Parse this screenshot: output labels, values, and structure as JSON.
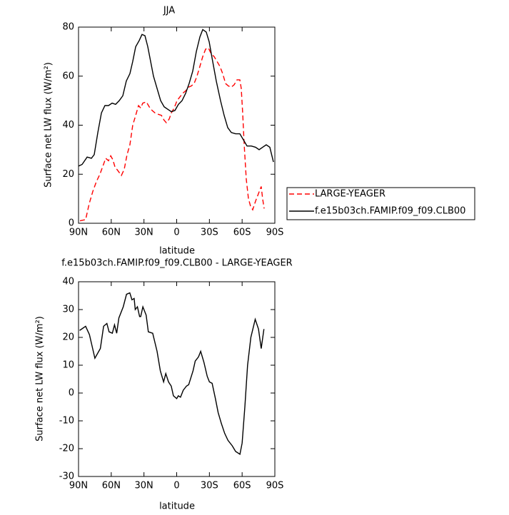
{
  "chart_data": [
    {
      "type": "line",
      "title": "JJA",
      "x_label": "latitude",
      "y_label": "Surface net LW flux (W/m²)",
      "xlim": [
        90,
        -90
      ],
      "xticks": [
        {
          "value": 90,
          "label": "90N"
        },
        {
          "value": 60,
          "label": "60N"
        },
        {
          "value": 30,
          "label": "30N"
        },
        0,
        {
          "value": -30,
          "label": "30S"
        },
        {
          "value": -60,
          "label": "60S"
        },
        {
          "value": -90,
          "label": "90S"
        }
      ],
      "ylim": [
        0,
        80
      ],
      "yticks": [
        0,
        20,
        40,
        60,
        80
      ],
      "legend": "right",
      "series": [
        {
          "name": "LARGE-YEAGER",
          "color": "#ff0000",
          "line_style": "dashed",
          "x": [
            88.7,
            83.5,
            80.2,
            76.9,
            73.6,
            70.4,
            67.1,
            65.1,
            62.5,
            60.5,
            58.6,
            56.6,
            54,
            50.7,
            48.1,
            45.5,
            42.9,
            40.3,
            37.6,
            35,
            33,
            31.1,
            27.8,
            25.2,
            22.5,
            19.9,
            17.3,
            14,
            11.5,
            9.5,
            6.9,
            4.9,
            2.3,
            -0.3,
            -2.9,
            -5.5,
            -8.2,
            -10.8,
            -13.4,
            -16,
            -18.6,
            -21.3,
            -23.9,
            -26.5,
            -29.1,
            -31.7,
            -34.3,
            -37,
            -39.6,
            -42.2,
            -44.8,
            -47.4,
            -50.1,
            -52.7,
            -55.3,
            -57.9,
            -59.2,
            -60.5,
            -61.9,
            -63.8,
            -65.8,
            -67.7,
            -69.7,
            -72.3,
            -74.9,
            -77.5,
            -78.8,
            -80.2
          ],
          "values": [
            1,
            1.5,
            8,
            13,
            17,
            20,
            24,
            26.5,
            25.5,
            27.5,
            26,
            23,
            21.5,
            19.5,
            22,
            28,
            32,
            40,
            44,
            48,
            47,
            49,
            49.5,
            47.5,
            46,
            45,
            44.5,
            44,
            42,
            41,
            42.5,
            45,
            47,
            50,
            51.5,
            53,
            54,
            55.5,
            56,
            57,
            60,
            64,
            68,
            71,
            71.5,
            69,
            68,
            66,
            64,
            61,
            57,
            56,
            55.5,
            56.5,
            58.5,
            58.5,
            55,
            45,
            32,
            18,
            10,
            7,
            5.5,
            9,
            12,
            15,
            10,
            6
          ]
        },
        {
          "name": "f.e15b03ch.FAMIP.f09_f09.CLB00",
          "color": "#000000",
          "line_style": "solid",
          "x": [
            90,
            86.7,
            82.1,
            78.2,
            75.6,
            72.3,
            69,
            65.8,
            62.5,
            59.2,
            56,
            52.7,
            49.4,
            46.2,
            42.9,
            40.3,
            37.6,
            34.4,
            31.8,
            29.1,
            26.5,
            23.9,
            21.3,
            18,
            14.7,
            11.5,
            8.2,
            4.9,
            1.6,
            -1.6,
            -4.9,
            -8.2,
            -11.4,
            -14.7,
            -18,
            -21.3,
            -23.9,
            -27.1,
            -29.8,
            -33,
            -36.3,
            -40.2,
            -43.5,
            -46.8,
            -50.1,
            -54,
            -57.9,
            -61.2,
            -64.5,
            -68.4,
            -72.3,
            -75.6,
            -78.8,
            -82.1,
            -85.4,
            -88.7
          ],
          "values": [
            23.3,
            24,
            27,
            26.5,
            28,
            37,
            45,
            48,
            48,
            49,
            48.5,
            50,
            52,
            58,
            61,
            66,
            72,
            74.5,
            77,
            76.5,
            72,
            66,
            60,
            55,
            50,
            47.5,
            46.5,
            45.5,
            46,
            48.5,
            50,
            53,
            57,
            62,
            70,
            76,
            79,
            78,
            74,
            66,
            58,
            50,
            44,
            39,
            37,
            36.5,
            36.5,
            34,
            31.5,
            31.5,
            31,
            30,
            31,
            32,
            31,
            25
          ]
        }
      ]
    },
    {
      "type": "line",
      "title": "f.e15b03ch.FAMIP.f09_f09.CLB00 - LARGE-YEAGER",
      "x_label": "latitude",
      "y_label": "Surface net LW flux (W/m²)",
      "xlim": [
        90,
        -90
      ],
      "xticks": [
        {
          "value": 90,
          "label": "90N"
        },
        {
          "value": 60,
          "label": "60N"
        },
        {
          "value": 30,
          "label": "30N"
        },
        0,
        {
          "value": -30,
          "label": "30S"
        },
        {
          "value": -60,
          "label": "60S"
        },
        {
          "value": -90,
          "label": "90S"
        }
      ],
      "ylim": [
        -30,
        40
      ],
      "yticks": [
        -30,
        -20,
        -10,
        0,
        10,
        20,
        30,
        40
      ],
      "series": [
        {
          "color": "#000000",
          "line_style": "solid",
          "x": [
            89,
            83.5,
            80,
            75,
            70,
            67,
            64,
            62,
            59,
            57,
            55,
            53,
            49,
            46,
            43,
            41,
            39,
            38,
            36,
            34,
            33,
            31,
            28,
            26,
            22,
            18,
            15,
            12,
            10,
            7.5,
            5,
            3,
            0,
            -1.5,
            -3.5,
            -6,
            -9,
            -11,
            -15,
            -17,
            -20,
            -22,
            -25,
            -28,
            -30,
            -32.5,
            -35.5,
            -38,
            -41,
            -44,
            -47,
            -51,
            -54,
            -58,
            -60,
            -62.5,
            -65,
            -68,
            -72,
            -75,
            -77.5,
            -80
          ],
          "values": [
            22.5,
            24,
            21,
            12.5,
            16,
            24,
            25,
            22,
            21.5,
            24.5,
            21.5,
            27,
            31,
            35.5,
            36,
            33.5,
            34,
            30,
            31,
            27.5,
            27.5,
            31,
            28,
            22,
            21.5,
            15,
            8,
            4,
            7,
            4,
            2.5,
            -1,
            -2,
            -1,
            -1.5,
            1,
            2.5,
            3,
            8,
            11.5,
            13,
            15,
            11,
            6,
            4,
            3.5,
            -2,
            -7,
            -11,
            -14.5,
            -17,
            -19,
            -21,
            -22,
            -18,
            -5,
            10,
            20,
            26.5,
            23,
            16,
            23
          ]
        }
      ]
    }
  ]
}
